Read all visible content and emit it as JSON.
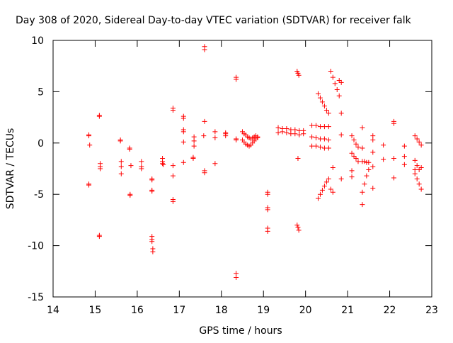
{
  "chart_data": {
    "type": "scatter",
    "title": "Day 308 of 2020, Sidereal Day-to-day VTEC variation (SDTVAR) for receiver falk",
    "xlabel": "GPS time / hours",
    "ylabel": "SDTVAR / TECUs",
    "xlim": [
      14,
      23
    ],
    "ylim": [
      -15,
      10
    ],
    "x_ticks": [
      14,
      15,
      16,
      17,
      18,
      19,
      20,
      21,
      22,
      23
    ],
    "y_ticks": [
      -15,
      -10,
      -5,
      0,
      5,
      10
    ],
    "marker": "plus",
    "color": "#ff0000",
    "series": [
      {
        "name": "SDTVAR",
        "segments": [
          {
            "x": [
              14.85,
              14.85
            ],
            "y": [
              0.8,
              0.7
            ]
          },
          {
            "x": [
              14.87
            ],
            "y": [
              -0.2
            ]
          },
          {
            "x": [
              14.85,
              14.85
            ],
            "y": [
              -4.0,
              -4.1
            ]
          },
          {
            "x": [
              15.1,
              15.1
            ],
            "y": [
              2.7,
              2.6
            ]
          },
          {
            "x": [
              15.12,
              15.12,
              15.12
            ],
            "y": [
              -2.0,
              -2.3,
              -2.5
            ]
          },
          {
            "x": [
              15.1,
              15.1
            ],
            "y": [
              -9.0,
              -9.1
            ]
          },
          {
            "x": [
              15.6,
              15.6
            ],
            "y": [
              0.3,
              0.2
            ]
          },
          {
            "x": [
              15.62,
              15.62,
              15.62
            ],
            "y": [
              -1.8,
              -2.3,
              -3.0
            ]
          },
          {
            "x": [
              15.82,
              15.82
            ],
            "y": [
              -0.5,
              -0.6
            ]
          },
          {
            "x": [
              15.85
            ],
            "y": [
              -2.2
            ]
          },
          {
            "x": [
              15.83,
              15.83
            ],
            "y": [
              -5.0,
              -5.1
            ]
          },
          {
            "x": [
              16.1,
              16.1,
              16.1
            ],
            "y": [
              -1.8,
              -2.3,
              -2.5
            ]
          },
          {
            "x": [
              16.35,
              16.35
            ],
            "y": [
              -3.5,
              -3.6
            ]
          },
          {
            "x": [
              16.35,
              16.35
            ],
            "y": [
              -4.6,
              -4.7
            ]
          },
          {
            "x": [
              16.35,
              16.35,
              16.35
            ],
            "y": [
              -9.1,
              -9.4,
              -9.6
            ]
          },
          {
            "x": [
              16.37,
              16.37
            ],
            "y": [
              -10.3,
              -10.6
            ]
          },
          {
            "x": [
              16.6,
              16.6,
              16.6,
              16.62
            ],
            "y": [
              -1.5,
              -1.8,
              -2.0,
              -2.1
            ]
          },
          {
            "x": [
              16.85,
              16.85
            ],
            "y": [
              3.4,
              3.2
            ]
          },
          {
            "x": [
              16.85
            ],
            "y": [
              -2.2
            ]
          },
          {
            "x": [
              16.85
            ],
            "y": [
              -3.2
            ]
          },
          {
            "x": [
              16.85,
              16.85
            ],
            "y": [
              -5.5,
              -5.7
            ]
          },
          {
            "x": [
              17.1,
              17.1
            ],
            "y": [
              2.6,
              2.4
            ]
          },
          {
            "x": [
              17.1,
              17.1
            ],
            "y": [
              1.3,
              1.1
            ]
          },
          {
            "x": [
              17.1
            ],
            "y": [
              0.1
            ]
          },
          {
            "x": [
              17.1
            ],
            "y": [
              -1.9
            ]
          },
          {
            "x": [
              17.35,
              17.35,
              17.35
            ],
            "y": [
              0.6,
              0.2,
              -0.3
            ]
          },
          {
            "x": [
              17.33,
              17.33
            ],
            "y": [
              -1.5,
              -1.4
            ]
          },
          {
            "x": [
              17.6,
              17.6
            ],
            "y": [
              9.4,
              9.1
            ]
          },
          {
            "x": [
              17.6
            ],
            "y": [
              2.1
            ]
          },
          {
            "x": [
              17.58
            ],
            "y": [
              0.7
            ]
          },
          {
            "x": [
              17.6,
              17.6
            ],
            "y": [
              -2.7,
              -2.9
            ]
          },
          {
            "x": [
              17.85
            ],
            "y": [
              1.1
            ]
          },
          {
            "x": [
              17.85
            ],
            "y": [
              0.5
            ]
          },
          {
            "x": [
              17.85
            ],
            "y": [
              -2.0
            ]
          },
          {
            "x": [
              18.1,
              18.1,
              18.1
            ],
            "y": [
              1.0,
              0.9,
              0.7
            ]
          },
          {
            "x": [
              18.35,
              18.35
            ],
            "y": [
              6.4,
              6.2
            ]
          },
          {
            "x": [
              18.35,
              18.35
            ],
            "y": [
              0.4,
              0.3
            ]
          },
          {
            "x": [
              18.35,
              18.35
            ],
            "y": [
              -12.7,
              -13.1
            ]
          },
          {
            "x": [
              18.5,
              18.54,
              18.58,
              18.62,
              18.66,
              18.7,
              18.74,
              18.78,
              18.82,
              18.86
            ],
            "y": [
              1.1,
              0.9,
              0.8,
              0.6,
              0.5,
              0.4,
              0.5,
              0.6,
              0.7,
              0.6
            ]
          },
          {
            "x": [
              18.5,
              18.54,
              18.58,
              18.62,
              18.66,
              18.7,
              18.74,
              18.78,
              18.82,
              18.86
            ],
            "y": [
              0.3,
              0.1,
              -0.1,
              -0.2,
              -0.3,
              -0.2,
              0.0,
              0.2,
              0.4,
              0.5
            ]
          },
          {
            "x": [
              19.1,
              19.1
            ],
            "y": [
              -4.8,
              -5.0
            ]
          },
          {
            "x": [
              19.1,
              19.1
            ],
            "y": [
              -6.3,
              -6.5
            ]
          },
          {
            "x": [
              19.1,
              19.1
            ],
            "y": [
              -8.3,
              -8.6
            ]
          },
          {
            "x": [
              19.35,
              19.45,
              19.55,
              19.65,
              19.75,
              19.85,
              19.95
            ],
            "y": [
              1.5,
              1.4,
              1.4,
              1.3,
              1.3,
              1.2,
              1.2
            ]
          },
          {
            "x": [
              19.35,
              19.45,
              19.55,
              19.65,
              19.75,
              19.85,
              19.95
            ],
            "y": [
              1.0,
              1.1,
              1.0,
              0.9,
              0.9,
              0.8,
              0.9
            ]
          },
          {
            "x": [
              19.8,
              19.82,
              19.84
            ],
            "y": [
              7.0,
              6.8,
              6.6
            ]
          },
          {
            "x": [
              19.82
            ],
            "y": [
              -1.5
            ]
          },
          {
            "x": [
              19.8,
              19.82,
              19.84
            ],
            "y": [
              -8.0,
              -8.2,
              -8.5
            ]
          },
          {
            "x": [
              20.15,
              20.25,
              20.35,
              20.45,
              20.55
            ],
            "y": [
              1.7,
              1.7,
              1.6,
              1.6,
              1.6
            ]
          },
          {
            "x": [
              20.15,
              20.25,
              20.35,
              20.45,
              20.55
            ],
            "y": [
              0.6,
              0.5,
              0.4,
              0.4,
              0.3
            ]
          },
          {
            "x": [
              20.15,
              20.25,
              20.35,
              20.45,
              20.55
            ],
            "y": [
              -0.3,
              -0.3,
              -0.4,
              -0.5,
              -0.5
            ]
          },
          {
            "x": [
              20.3,
              20.35,
              20.4,
              20.45,
              20.5,
              20.55
            ],
            "y": [
              4.8,
              4.4,
              4.0,
              3.6,
              3.2,
              2.9
            ]
          },
          {
            "x": [
              20.3,
              20.35,
              20.4,
              20.45,
              20.5,
              20.55
            ],
            "y": [
              -5.4,
              -5.0,
              -4.6,
              -4.2,
              -3.8,
              -3.5
            ]
          },
          {
            "x": [
              20.6,
              20.65,
              20.7,
              20.75,
              20.8
            ],
            "y": [
              7.0,
              6.4,
              5.8,
              5.2,
              4.6
            ]
          },
          {
            "x": [
              20.8,
              20.85
            ],
            "y": [
              6.1,
              5.9
            ]
          },
          {
            "x": [
              20.85
            ],
            "y": [
              2.9
            ]
          },
          {
            "x": [
              20.65
            ],
            "y": [
              -2.4
            ]
          },
          {
            "x": [
              20.6,
              20.65
            ],
            "y": [
              -4.5,
              -4.8
            ]
          },
          {
            "x": [
              20.85
            ],
            "y": [
              0.8
            ]
          },
          {
            "x": [
              20.85
            ],
            "y": [
              -3.5
            ]
          },
          {
            "x": [
              21.1,
              21.15,
              21.2,
              21.25
            ],
            "y": [
              0.7,
              0.3,
              -0.1,
              -0.4
            ]
          },
          {
            "x": [
              21.1,
              21.15,
              21.2,
              21.25
            ],
            "y": [
              -1.0,
              -1.3,
              -1.5,
              -1.8
            ]
          },
          {
            "x": [
              21.1
            ],
            "y": [
              -2.7
            ]
          },
          {
            "x": [
              21.1
            ],
            "y": [
              -3.3
            ]
          },
          {
            "x": [
              21.35,
              21.4,
              21.45,
              21.5
            ],
            "y": [
              -4.8,
              -4.0,
              -3.2,
              -2.6
            ]
          },
          {
            "x": [
              21.35,
              21.4,
              21.45,
              21.5
            ],
            "y": [
              -1.8,
              -1.8,
              -1.9,
              -1.9
            ]
          },
          {
            "x": [
              21.35
            ],
            "y": [
              1.5
            ]
          },
          {
            "x": [
              21.35
            ],
            "y": [
              -0.5
            ]
          },
          {
            "x": [
              21.35
            ],
            "y": [
              -6.0
            ]
          },
          {
            "x": [
              21.6,
              21.6
            ],
            "y": [
              0.7,
              0.3
            ]
          },
          {
            "x": [
              21.6
            ],
            "y": [
              -0.9
            ]
          },
          {
            "x": [
              21.6
            ],
            "y": [
              -2.3
            ]
          },
          {
            "x": [
              21.6
            ],
            "y": [
              -4.4
            ]
          },
          {
            "x": [
              21.85
            ],
            "y": [
              -0.2
            ]
          },
          {
            "x": [
              21.85
            ],
            "y": [
              -1.6
            ]
          },
          {
            "x": [
              22.1,
              22.1
            ],
            "y": [
              2.1,
              1.9
            ]
          },
          {
            "x": [
              22.1
            ],
            "y": [
              -1.5
            ]
          },
          {
            "x": [
              22.1
            ],
            "y": [
              -3.4
            ]
          },
          {
            "x": [
              22.35
            ],
            "y": [
              -0.3
            ]
          },
          {
            "x": [
              22.35
            ],
            "y": [
              -1.3
            ]
          },
          {
            "x": [
              22.35
            ],
            "y": [
              -2.1
            ]
          },
          {
            "x": [
              22.6,
              22.65,
              22.7,
              22.75
            ],
            "y": [
              0.7,
              0.4,
              0.1,
              -0.2
            ]
          },
          {
            "x": [
              22.6,
              22.65,
              22.7,
              22.75
            ],
            "y": [
              -1.7,
              -2.2,
              -2.6,
              -2.4
            ]
          },
          {
            "x": [
              22.6,
              22.65,
              22.7,
              22.75
            ],
            "y": [
              -3.0,
              -3.5,
              -4.0,
              -4.5
            ]
          },
          {
            "x": [
              22.6
            ],
            "y": [
              -2.6
            ]
          }
        ]
      }
    ]
  }
}
